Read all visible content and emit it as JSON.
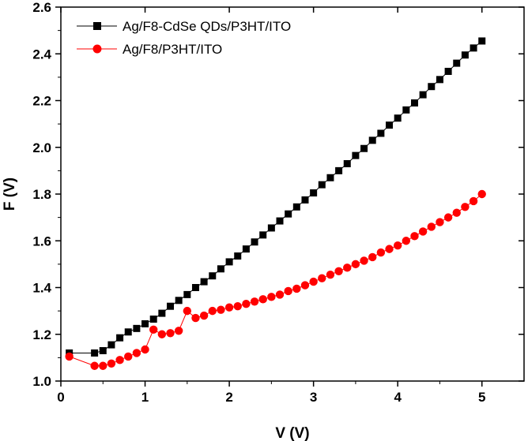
{
  "chart_data": {
    "type": "line",
    "title": "",
    "xlabel": "V (V)",
    "ylabel": "F (V)",
    "xlim": [
      0,
      5.5
    ],
    "ylim": [
      1.0,
      2.6
    ],
    "grid": false,
    "legend_position": "top-left",
    "x_ticks": [
      "0",
      "1",
      "2",
      "3",
      "4",
      "5"
    ],
    "y_ticks": [
      "1.0",
      "1.2",
      "1.4",
      "1.6",
      "1.8",
      "2.0",
      "2.2",
      "2.4",
      "2.6"
    ],
    "series": [
      {
        "name": "Ag/F8-CdSe QDs/P3HT/ITO",
        "marker": "square",
        "color": "#000000",
        "x": [
          0.1,
          0.4,
          0.5,
          0.6,
          0.7,
          0.8,
          0.9,
          1.0,
          1.1,
          1.2,
          1.3,
          1.4,
          1.5,
          1.6,
          1.7,
          1.8,
          1.9,
          2.0,
          2.1,
          2.2,
          2.3,
          2.4,
          2.5,
          2.6,
          2.7,
          2.8,
          2.9,
          3.0,
          3.1,
          3.2,
          3.3,
          3.4,
          3.5,
          3.6,
          3.7,
          3.8,
          3.9,
          4.0,
          4.1,
          4.2,
          4.3,
          4.4,
          4.5,
          4.6,
          4.7,
          4.8,
          4.9,
          5.0
        ],
        "y": [
          1.12,
          1.12,
          1.13,
          1.155,
          1.185,
          1.21,
          1.225,
          1.245,
          1.265,
          1.29,
          1.32,
          1.345,
          1.37,
          1.4,
          1.425,
          1.45,
          1.48,
          1.51,
          1.535,
          1.565,
          1.595,
          1.625,
          1.655,
          1.685,
          1.715,
          1.745,
          1.775,
          1.805,
          1.84,
          1.87,
          1.9,
          1.93,
          1.965,
          1.995,
          2.03,
          2.06,
          2.095,
          2.125,
          2.16,
          2.19,
          2.225,
          2.26,
          2.29,
          2.325,
          2.36,
          2.395,
          2.425,
          2.455
        ]
      },
      {
        "name": "Ag/F8/P3HT/ITO",
        "marker": "circle",
        "color": "#ff0000",
        "x": [
          0.1,
          0.4,
          0.5,
          0.6,
          0.7,
          0.8,
          0.9,
          1.0,
          1.1,
          1.2,
          1.3,
          1.4,
          1.5,
          1.6,
          1.7,
          1.8,
          1.9,
          2.0,
          2.1,
          2.2,
          2.3,
          2.4,
          2.5,
          2.6,
          2.7,
          2.8,
          2.9,
          3.0,
          3.1,
          3.2,
          3.3,
          3.4,
          3.5,
          3.6,
          3.7,
          3.8,
          3.9,
          4.0,
          4.1,
          4.2,
          4.3,
          4.4,
          4.5,
          4.6,
          4.7,
          4.8,
          4.9,
          5.0
        ],
        "y": [
          1.105,
          1.065,
          1.065,
          1.075,
          1.09,
          1.105,
          1.12,
          1.135,
          1.22,
          1.2,
          1.205,
          1.215,
          1.3,
          1.27,
          1.28,
          1.3,
          1.305,
          1.315,
          1.32,
          1.33,
          1.34,
          1.35,
          1.36,
          1.37,
          1.385,
          1.395,
          1.41,
          1.425,
          1.44,
          1.455,
          1.47,
          1.485,
          1.5,
          1.515,
          1.53,
          1.55,
          1.565,
          1.58,
          1.6,
          1.62,
          1.64,
          1.66,
          1.68,
          1.7,
          1.72,
          1.745,
          1.77,
          1.8
        ]
      }
    ]
  }
}
